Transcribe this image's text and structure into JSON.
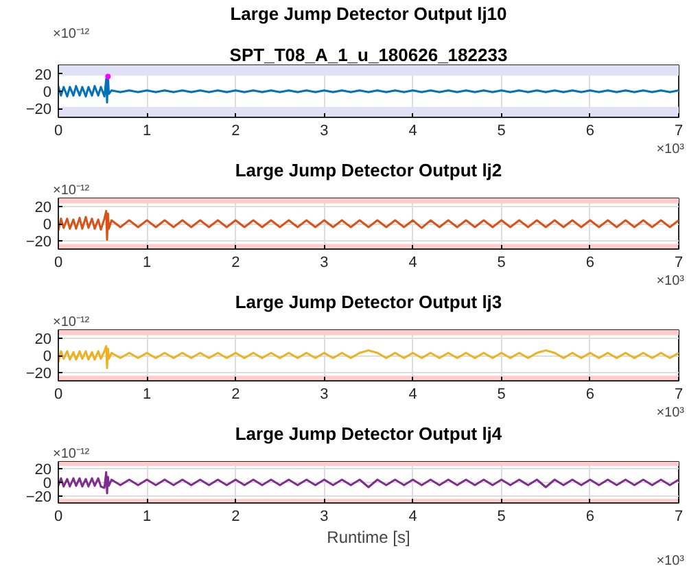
{
  "chart_data": [
    {
      "type": "line",
      "title": "Large Jump Detector Output lj10",
      "subtitle": "SPT_T08_A_1_u_180626_182233",
      "annotations": [
        "×10⁻¹²",
        "×10³"
      ],
      "xlim": [
        0,
        7
      ],
      "xticks": [
        0,
        1,
        2,
        3,
        4,
        5,
        6,
        7
      ],
      "ylim": [
        -30,
        30
      ],
      "yticks": [
        -20,
        0,
        20
      ],
      "grid": true,
      "line_style": "solid",
      "marker": "none",
      "x": [
        0,
        0.03,
        0.06,
        0.1,
        0.13,
        0.17,
        0.2,
        0.24,
        0.27,
        0.31,
        0.34,
        0.38,
        0.41,
        0.45,
        0.48,
        0.52,
        0.54,
        0.55,
        0.56,
        0.57,
        0.6,
        0.7,
        0.8,
        0.9,
        1.0,
        1.1,
        1.2,
        1.3,
        1.4,
        1.5,
        1.6,
        1.7,
        1.8,
        1.9,
        2.0,
        2.1,
        2.2,
        2.3,
        2.4,
        2.5,
        2.6,
        2.7,
        2.8,
        2.9,
        3.0,
        3.1,
        3.2,
        3.3,
        3.4,
        3.5,
        3.6,
        3.7,
        3.8,
        3.9,
        4.0,
        4.1,
        4.2,
        4.3,
        4.4,
        4.5,
        4.6,
        4.7,
        4.8,
        4.9,
        5.0,
        5.1,
        5.2,
        5.3,
        5.4,
        5.5,
        5.6,
        5.7,
        5.8,
        5.9,
        6.0,
        6.1,
        6.2,
        6.3,
        6.4,
        6.5,
        6.6,
        6.7,
        6.8,
        6.9,
        7.0
      ],
      "bands": [
        {
          "axis": "y",
          "from": 18,
          "to": 30,
          "color": "#e0e0f6"
        },
        {
          "axis": "y",
          "from": -30,
          "to": -18,
          "color": "#e0e0f6"
        }
      ],
      "series": [
        {
          "color": "#0072bd",
          "values": [
            6,
            -5,
            5,
            -6,
            5,
            -5,
            6,
            -5,
            5,
            -6,
            5,
            -5,
            6,
            -5,
            5,
            -6,
            14,
            -13,
            17,
            -3,
            1,
            -1,
            1,
            -1,
            1,
            -1,
            1,
            -1,
            1,
            -1,
            1,
            -1,
            1,
            -1,
            1,
            -1,
            1,
            -1,
            1,
            -1,
            1,
            -1,
            1,
            -1,
            1,
            -1,
            1,
            -1,
            1,
            -1,
            1,
            -1,
            1,
            -1,
            1,
            -1,
            1,
            -1,
            1,
            -1,
            1,
            -1,
            1,
            -1,
            1,
            -1,
            1,
            -1,
            1,
            -1,
            1,
            -1,
            1,
            -1,
            1,
            -1,
            1,
            -1,
            1,
            -1,
            1,
            -1,
            1,
            -1,
            1
          ]
        },
        {
          "type": "scatter",
          "color": "#ff00ff",
          "marker": "circle",
          "x": [
            0.56
          ],
          "values": [
            17
          ]
        }
      ]
    },
    {
      "type": "line",
      "title": "Large Jump Detector Output lj2",
      "annotations": [
        "×10⁻¹²",
        "×10³"
      ],
      "xlim": [
        0,
        7
      ],
      "xticks": [
        0,
        1,
        2,
        3,
        4,
        5,
        6,
        7
      ],
      "ylim": [
        -30,
        30
      ],
      "yticks": [
        -20,
        0,
        20
      ],
      "grid": true,
      "line_style": "solid",
      "marker": "none",
      "x": [
        0,
        0.03,
        0.06,
        0.1,
        0.13,
        0.17,
        0.2,
        0.24,
        0.27,
        0.31,
        0.34,
        0.38,
        0.41,
        0.45,
        0.48,
        0.52,
        0.54,
        0.55,
        0.56,
        0.57,
        0.6,
        0.7,
        0.8,
        0.9,
        1.0,
        1.1,
        1.2,
        1.3,
        1.4,
        1.5,
        1.6,
        1.7,
        1.8,
        1.9,
        2.0,
        2.1,
        2.2,
        2.3,
        2.4,
        2.5,
        2.6,
        2.7,
        2.8,
        2.9,
        3.0,
        3.1,
        3.2,
        3.3,
        3.4,
        3.5,
        3.6,
        3.7,
        3.8,
        3.9,
        4.0,
        4.1,
        4.2,
        4.3,
        4.4,
        4.5,
        4.6,
        4.7,
        4.8,
        4.9,
        5.0,
        5.1,
        5.2,
        5.3,
        5.4,
        5.5,
        5.6,
        5.7,
        5.8,
        5.9,
        6.0,
        6.1,
        6.2,
        6.3,
        6.4,
        6.5,
        6.6,
        6.7,
        6.8,
        6.9,
        7.0
      ],
      "bands": [
        {
          "axis": "y",
          "from": 24,
          "to": 30,
          "color": "#ffcccc"
        },
        {
          "axis": "y",
          "from": -30,
          "to": -24,
          "color": "#ffcccc"
        }
      ],
      "series": [
        {
          "color": "#d95319",
          "values": [
            -8,
            6,
            -5,
            6,
            -6,
            5,
            -6,
            7,
            -6,
            8,
            -5,
            6,
            -6,
            5,
            -7,
            6,
            15,
            -19,
            12,
            -6,
            4,
            -4,
            4,
            -4,
            4,
            -4,
            4,
            -4,
            4,
            -4,
            4,
            -4,
            4,
            -4,
            4,
            -4,
            4,
            -4,
            4,
            -4,
            4,
            -4,
            4,
            -4,
            4,
            -4,
            4,
            -4,
            4,
            -4,
            4,
            -4,
            4,
            -4,
            4,
            -5,
            4,
            -4,
            4,
            -4,
            4,
            -4,
            4,
            -4,
            4,
            -4,
            4,
            -4,
            4,
            -4,
            4,
            -4,
            4,
            -4,
            4,
            -4,
            4,
            -4,
            4,
            -4,
            4,
            -4,
            4,
            -4,
            4
          ]
        }
      ]
    },
    {
      "type": "line",
      "title": "Large Jump Detector Output lj3",
      "annotations": [
        "×10⁻¹²",
        "×10³"
      ],
      "xlim": [
        0,
        7
      ],
      "xticks": [
        0,
        1,
        2,
        3,
        4,
        5,
        6,
        7
      ],
      "ylim": [
        -30,
        30
      ],
      "yticks": [
        -20,
        0,
        20
      ],
      "grid": true,
      "line_style": "solid",
      "marker": "none",
      "x": [
        0,
        0.03,
        0.06,
        0.1,
        0.13,
        0.17,
        0.2,
        0.24,
        0.27,
        0.31,
        0.34,
        0.38,
        0.41,
        0.45,
        0.48,
        0.52,
        0.54,
        0.55,
        0.56,
        0.57,
        0.6,
        0.7,
        0.8,
        0.9,
        1.0,
        1.1,
        1.2,
        1.3,
        1.4,
        1.5,
        1.6,
        1.7,
        1.8,
        1.9,
        2.0,
        2.1,
        2.2,
        2.3,
        2.4,
        2.5,
        2.6,
        2.7,
        2.8,
        2.9,
        3.0,
        3.1,
        3.2,
        3.3,
        3.4,
        3.5,
        3.6,
        3.7,
        3.8,
        3.9,
        4.0,
        4.1,
        4.2,
        4.3,
        4.4,
        4.5,
        4.6,
        4.7,
        4.8,
        4.9,
        5.0,
        5.1,
        5.2,
        5.3,
        5.4,
        5.5,
        5.6,
        5.7,
        5.8,
        5.9,
        6.0,
        6.1,
        6.2,
        6.3,
        6.4,
        6.5,
        6.6,
        6.7,
        6.8,
        6.9,
        7.0
      ],
      "bands": [
        {
          "axis": "y",
          "from": 24,
          "to": 30,
          "color": "#ffcccc"
        },
        {
          "axis": "y",
          "from": -30,
          "to": -24,
          "color": "#ffcccc"
        }
      ],
      "series": [
        {
          "color": "#edb120",
          "values": [
            -8,
            5,
            -4,
            5,
            -5,
            4,
            -5,
            5,
            -4,
            5,
            -5,
            4,
            -5,
            5,
            -4,
            5,
            11,
            -15,
            8,
            -4,
            3,
            -3,
            3,
            -3,
            3,
            -3,
            3,
            -3,
            3,
            -3,
            3,
            -3,
            3,
            -3,
            3,
            -3,
            3,
            -3,
            3,
            -3,
            3,
            -3,
            3,
            -3,
            3,
            -3,
            3,
            -3,
            3,
            6,
            3,
            -3,
            3,
            -3,
            3,
            -3,
            3,
            -3,
            3,
            -3,
            3,
            -3,
            3,
            -3,
            3,
            -3,
            3,
            -3,
            3,
            6,
            3,
            -3,
            3,
            -3,
            3,
            -3,
            3,
            -3,
            3,
            -3,
            3,
            -3,
            3,
            -3,
            3
          ]
        }
      ]
    },
    {
      "type": "line",
      "title": "Large Jump Detector Output lj4",
      "xlabel": "Runtime [s]",
      "annotations": [
        "×10⁻¹²",
        "×10³"
      ],
      "xlim": [
        0,
        7
      ],
      "xticks": [
        0,
        1,
        2,
        3,
        4,
        5,
        6,
        7
      ],
      "ylim": [
        -30,
        30
      ],
      "yticks": [
        -20,
        0,
        20
      ],
      "grid": true,
      "line_style": "solid",
      "marker": "none",
      "x": [
        0,
        0.03,
        0.06,
        0.1,
        0.13,
        0.17,
        0.2,
        0.24,
        0.27,
        0.31,
        0.34,
        0.38,
        0.41,
        0.45,
        0.48,
        0.52,
        0.54,
        0.55,
        0.56,
        0.57,
        0.6,
        0.7,
        0.8,
        0.9,
        1.0,
        1.1,
        1.2,
        1.3,
        1.4,
        1.5,
        1.6,
        1.7,
        1.8,
        1.9,
        2.0,
        2.1,
        2.2,
        2.3,
        2.4,
        2.5,
        2.6,
        2.7,
        2.8,
        2.9,
        3.0,
        3.1,
        3.2,
        3.3,
        3.4,
        3.5,
        3.6,
        3.7,
        3.8,
        3.9,
        4.0,
        4.1,
        4.2,
        4.3,
        4.4,
        4.5,
        4.6,
        4.7,
        4.8,
        4.9,
        5.0,
        5.1,
        5.2,
        5.3,
        5.4,
        5.5,
        5.6,
        5.7,
        5.8,
        5.9,
        6.0,
        6.1,
        6.2,
        6.3,
        6.4,
        6.5,
        6.6,
        6.7,
        6.8,
        6.9,
        7.0
      ],
      "bands": [
        {
          "axis": "y",
          "from": 24,
          "to": 30,
          "color": "#ffcccc"
        },
        {
          "axis": "y",
          "from": -30,
          "to": -24,
          "color": "#ffcccc"
        }
      ],
      "series": [
        {
          "color": "#7e2f8e",
          "values": [
            -5,
            6,
            -6,
            5,
            -6,
            6,
            -5,
            6,
            -6,
            5,
            -6,
            6,
            -5,
            6,
            -6,
            -8,
            15,
            -16,
            8,
            -5,
            4,
            -4,
            4,
            -4,
            4,
            -4,
            4,
            -4,
            4,
            -4,
            4,
            -4,
            4,
            -4,
            4,
            -4,
            4,
            -4,
            4,
            -4,
            4,
            -4,
            4,
            -4,
            4,
            -4,
            4,
            -4,
            4,
            -7,
            4,
            -4,
            4,
            -4,
            4,
            -4,
            4,
            -4,
            4,
            -4,
            4,
            -4,
            4,
            -4,
            4,
            -4,
            4,
            -4,
            4,
            -7,
            4,
            -4,
            4,
            -4,
            4,
            -4,
            4,
            -4,
            4,
            -4,
            4,
            -4,
            4,
            -4,
            4
          ]
        }
      ]
    }
  ]
}
